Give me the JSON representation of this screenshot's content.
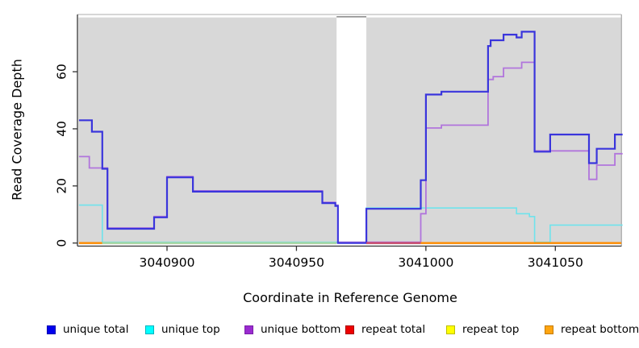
{
  "figure": {
    "kind": "R step plot of read coverage"
  },
  "titles": {
    "x_axis": "Coordinate in Reference Genome",
    "y_axis": "Read Coverage Depth"
  },
  "chart_data": {
    "type": "line",
    "subtype": "step",
    "title": "",
    "xlabel": "Coordinate in Reference Genome",
    "ylabel": "Read Coverage Depth",
    "xlim": [
      3040865.8,
      3041075.5
    ],
    "ylim": [
      0,
      79
    ],
    "x_ticks": [
      3040900,
      3040950,
      3041000,
      3041050
    ],
    "y_ticks": [
      0,
      20,
      40,
      60
    ],
    "grid": false,
    "legend_position": "bottom",
    "plot_background": "#d8d8d8",
    "missing_data_gap": {
      "from": 3040965.5,
      "to": 3040977
    },
    "series": [
      {
        "name": "unique total",
        "line_color": "#3a35dc",
        "legend_color": "#0000ee",
        "legend_border": "#0000b0",
        "draw": true,
        "points": [
          [
            3040866,
            43
          ],
          [
            3040871,
            39
          ],
          [
            3040875,
            26
          ],
          [
            3040877,
            5
          ],
          [
            3040895,
            9
          ],
          [
            3040900,
            23
          ],
          [
            3040910,
            18
          ],
          [
            3040960,
            14
          ],
          [
            3040965,
            13
          ],
          [
            3040966,
            0
          ],
          [
            3040977,
            12
          ],
          [
            3040998,
            22
          ],
          [
            3041000,
            52
          ],
          [
            3041006,
            53
          ],
          [
            3041024,
            69
          ],
          [
            3041025,
            71
          ],
          [
            3041030,
            73
          ],
          [
            3041035,
            72
          ],
          [
            3041037,
            74
          ],
          [
            3041042,
            32
          ],
          [
            3041048,
            38
          ],
          [
            3041063,
            28
          ],
          [
            3041066,
            33
          ],
          [
            3041073,
            38
          ],
          [
            3041076,
            38
          ]
        ]
      },
      {
        "name": "unique top",
        "line_color": "#6fe3ec",
        "legend_color": "#00ffff",
        "legend_border": "#00b2bd",
        "draw": true,
        "points": [
          [
            3040866,
            13
          ],
          [
            3040875,
            0
          ],
          [
            3040966,
            0
          ],
          [
            3040977,
            12
          ],
          [
            3041035,
            10
          ],
          [
            3041040,
            9
          ],
          [
            3041042,
            0
          ],
          [
            3041048,
            6
          ],
          [
            3041076,
            6
          ]
        ]
      },
      {
        "name": "unique bottom",
        "line_color": "#b175dc",
        "legend_color": "#9a2bd0",
        "legend_border": "#7a1fa8",
        "draw": true,
        "points": [
          [
            3040866,
            30
          ],
          [
            3040870,
            26
          ],
          [
            3040877,
            5
          ],
          [
            3040895,
            9
          ],
          [
            3040900,
            23
          ],
          [
            3040910,
            18
          ],
          [
            3040960,
            14
          ],
          [
            3040965,
            13
          ],
          [
            3040966,
            0
          ],
          [
            3040998,
            10
          ],
          [
            3041000,
            40
          ],
          [
            3041006,
            41
          ],
          [
            3041024,
            57
          ],
          [
            3041026,
            58
          ],
          [
            3041030,
            61
          ],
          [
            3041037,
            63
          ],
          [
            3041042,
            32
          ],
          [
            3041063,
            22
          ],
          [
            3041066,
            27
          ],
          [
            3041073,
            31
          ],
          [
            3041076,
            31
          ]
        ]
      },
      {
        "name": "repeat total",
        "line_color": "#ee0000",
        "legend_color": "#ee0000",
        "legend_border": "#a80000",
        "draw": false,
        "points": [
          [
            3040866,
            0
          ],
          [
            3041076,
            0
          ]
        ]
      },
      {
        "name": "repeat top",
        "line_color": "#ffff00",
        "legend_color": "#ffff00",
        "legend_border": "#bdbd00",
        "draw": false,
        "points": [
          [
            3040866,
            0
          ],
          [
            3041076,
            0
          ]
        ]
      },
      {
        "name": "repeat bottom",
        "line_color": "#ff8c00",
        "legend_color": "#ffa510",
        "legend_border": "#c47a00",
        "draw": false,
        "points": [
          [
            3040866,
            0
          ],
          [
            3041076,
            0
          ]
        ]
      }
    ],
    "baseline_segments": [
      {
        "from": 3040866,
        "to": 3040875,
        "color": "#ff8c00",
        "meaning": "repeat coverage lines at depth 0 (orange on top)"
      },
      {
        "from": 3040875,
        "to": 3040965.5,
        "color": "#a6d6a0",
        "meaning": "overlapping top-strand lines at depth 0 (pale green blend)"
      },
      {
        "from": 3040977,
        "to": 3040998,
        "color": "#c94a6b",
        "meaning": "repeat total / unique bottom lines at depth 0 (crimson blend)"
      },
      {
        "from": 3040998,
        "to": 3041075.5,
        "color": "#ff8c00",
        "meaning": "repeat coverage lines at depth 0 (orange on top)"
      }
    ]
  },
  "legend": {
    "items": [
      {
        "label": "unique total"
      },
      {
        "label": "unique top"
      },
      {
        "label": "unique bottom"
      },
      {
        "label": "repeat total"
      },
      {
        "label": "repeat top"
      },
      {
        "label": "repeat bottom"
      }
    ]
  }
}
